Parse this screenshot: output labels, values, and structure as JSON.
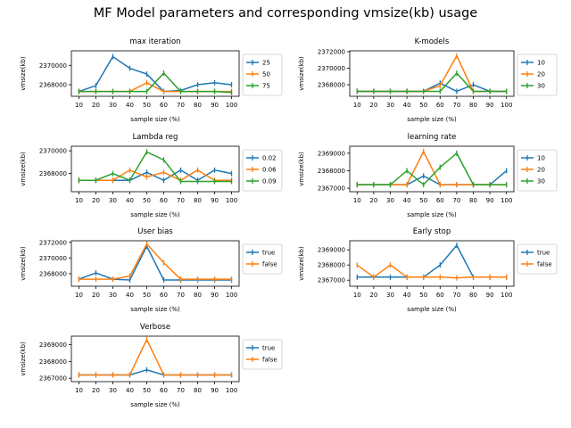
{
  "figure_title": "MF Model parameters and corresponding vmsize(kb) usage",
  "colors": {
    "blue": "#1f77b4",
    "orange": "#ff7f0e",
    "green": "#2ca02c"
  },
  "chart_data": [
    {
      "type": "line",
      "title": "max iteration",
      "xlabel": "sample size (%)",
      "ylabel": "vmsize(kb)",
      "categories": [
        "10",
        "20",
        "30",
        "40",
        "50",
        "60",
        "70",
        "80",
        "90",
        "100"
      ],
      "ylim": [
        2366800,
        2371500
      ],
      "yticks": [
        2368000,
        2370000
      ],
      "legend": "right-outside",
      "series": [
        {
          "name": "25",
          "color": "#1f77b4",
          "values": [
            2367300,
            2367900,
            2370900,
            2369700,
            2369100,
            2367300,
            2367400,
            2368000,
            2368200,
            2368000
          ]
        },
        {
          "name": "50",
          "color": "#ff7f0e",
          "values": [
            2367300,
            2367300,
            2367300,
            2367300,
            2368200,
            2367300,
            2367300,
            2367300,
            2367300,
            2367300
          ]
        },
        {
          "name": "75",
          "color": "#2ca02c",
          "values": [
            2367300,
            2367300,
            2367300,
            2367300,
            2367300,
            2369200,
            2367300,
            2367300,
            2367300,
            2367200
          ]
        }
      ]
    },
    {
      "type": "line",
      "title": "K-models",
      "xlabel": "sample size (%)",
      "ylabel": "vmsize(kb)",
      "categories": [
        "10",
        "20",
        "30",
        "40",
        "50",
        "60",
        "70",
        "80",
        "90",
        "100"
      ],
      "ylim": [
        2366600,
        2372100
      ],
      "yticks": [
        2368000,
        2370000,
        2372000
      ],
      "legend": "right-outside",
      "series": [
        {
          "name": "10",
          "color": "#1f77b4",
          "values": [
            2367200,
            2367200,
            2367200,
            2367200,
            2367200,
            2368200,
            2367200,
            2368000,
            2367200,
            2367200
          ]
        },
        {
          "name": "20",
          "color": "#ff7f0e",
          "values": [
            2367200,
            2367200,
            2367200,
            2367200,
            2367200,
            2367900,
            2371500,
            2367200,
            2367200,
            2367200
          ]
        },
        {
          "name": "30",
          "color": "#2ca02c",
          "values": [
            2367200,
            2367200,
            2367200,
            2367200,
            2367200,
            2367200,
            2369400,
            2367200,
            2367200,
            2367200
          ]
        }
      ]
    },
    {
      "type": "line",
      "title": "Lambda reg",
      "xlabel": "sample size (%)",
      "ylabel": "vmsize(kb)",
      "categories": [
        "10",
        "20",
        "30",
        "40",
        "50",
        "60",
        "70",
        "80",
        "90",
        "100"
      ],
      "ylim": [
        2366400,
        2370400
      ],
      "yticks": [
        2368000,
        2370000
      ],
      "legend": "right-outside",
      "series": [
        {
          "name": "0.02",
          "color": "#1f77b4",
          "values": [
            2367400,
            2367400,
            2367400,
            2367400,
            2368100,
            2367400,
            2368300,
            2367400,
            2368300,
            2368000
          ]
        },
        {
          "name": "0.06",
          "color": "#ff7f0e",
          "values": [
            2367400,
            2367400,
            2367400,
            2368300,
            2367700,
            2368100,
            2367400,
            2368300,
            2367400,
            2367400
          ]
        },
        {
          "name": "0.09",
          "color": "#2ca02c",
          "values": [
            2367400,
            2367400,
            2368000,
            2367400,
            2369900,
            2369200,
            2367300,
            2367300,
            2367300,
            2367300
          ]
        }
      ]
    },
    {
      "type": "line",
      "title": "learning rate",
      "xlabel": "sample size (%)",
      "ylabel": "vmsize(kb)",
      "categories": [
        "10",
        "20",
        "30",
        "40",
        "50",
        "60",
        "70",
        "80",
        "90",
        "100"
      ],
      "ylim": [
        2366800,
        2369400
      ],
      "yticks": [
        2367000,
        2368000,
        2369000
      ],
      "legend": "right-outside",
      "series": [
        {
          "name": "10",
          "color": "#1f77b4",
          "values": [
            2367200,
            2367200,
            2367200,
            2367200,
            2367700,
            2367200,
            2367200,
            2367200,
            2367200,
            2368000
          ]
        },
        {
          "name": "20",
          "color": "#ff7f0e",
          "values": [
            2367200,
            2367200,
            2367200,
            2367200,
            2369100,
            2367200,
            2367200,
            2367200,
            2367200,
            2367200
          ]
        },
        {
          "name": "30",
          "color": "#2ca02c",
          "values": [
            2367200,
            2367200,
            2367200,
            2368000,
            2367200,
            2368200,
            2369000,
            2367200,
            2367200,
            2367200
          ]
        }
      ]
    },
    {
      "type": "line",
      "title": "User bias",
      "xlabel": "sample size (%)",
      "ylabel": "vmsize(kb)",
      "categories": [
        "10",
        "20",
        "30",
        "40",
        "50",
        "60",
        "70",
        "80",
        "90",
        "100"
      ],
      "ylim": [
        2366400,
        2372200
      ],
      "yticks": [
        2368000,
        2370000,
        2372000
      ],
      "legend": "right-outside",
      "series": [
        {
          "name": "true",
          "color": "#1f77b4",
          "values": [
            2367300,
            2368100,
            2367300,
            2367200,
            2371500,
            2367200,
            2367200,
            2367200,
            2367200,
            2367200
          ]
        },
        {
          "name": "false",
          "color": "#ff7f0e",
          "values": [
            2367300,
            2367300,
            2367300,
            2367700,
            2371800,
            2369400,
            2367300,
            2367300,
            2367300,
            2367300
          ]
        }
      ]
    },
    {
      "type": "line",
      "title": "Early stop",
      "xlabel": "sample size (%)",
      "ylabel": "vmsize(kb)",
      "categories": [
        "10",
        "20",
        "30",
        "40",
        "50",
        "60",
        "70",
        "80",
        "90",
        "100"
      ],
      "ylim": [
        2366600,
        2369600
      ],
      "yticks": [
        2367000,
        2368000,
        2369000
      ],
      "legend": "right-outside",
      "series": [
        {
          "name": "true",
          "color": "#1f77b4",
          "values": [
            2367200,
            2367200,
            2367200,
            2367200,
            2367200,
            2368000,
            2369300,
            2367200,
            2367200,
            2367200
          ]
        },
        {
          "name": "false",
          "color": "#ff7f0e",
          "values": [
            2368000,
            2367200,
            2368000,
            2367200,
            2367200,
            2367200,
            2367150,
            2367200,
            2367200,
            2367200
          ]
        }
      ]
    },
    {
      "type": "line",
      "title": "Verbose",
      "xlabel": "sample size (%)",
      "ylabel": "vmsize(kb)",
      "categories": [
        "10",
        "20",
        "30",
        "40",
        "50",
        "60",
        "70",
        "80",
        "90",
        "100"
      ],
      "ylim": [
        2366800,
        2369500
      ],
      "yticks": [
        2367000,
        2368000,
        2369000
      ],
      "legend": "right-outside",
      "series": [
        {
          "name": "true",
          "color": "#1f77b4",
          "values": [
            2367200,
            2367200,
            2367200,
            2367200,
            2367500,
            2367200,
            2367200,
            2367200,
            2367200,
            2367200
          ]
        },
        {
          "name": "false",
          "color": "#ff7f0e",
          "values": [
            2367200,
            2367200,
            2367200,
            2367200,
            2369300,
            2367200,
            2367200,
            2367200,
            2367200,
            2367200
          ]
        }
      ]
    }
  ]
}
